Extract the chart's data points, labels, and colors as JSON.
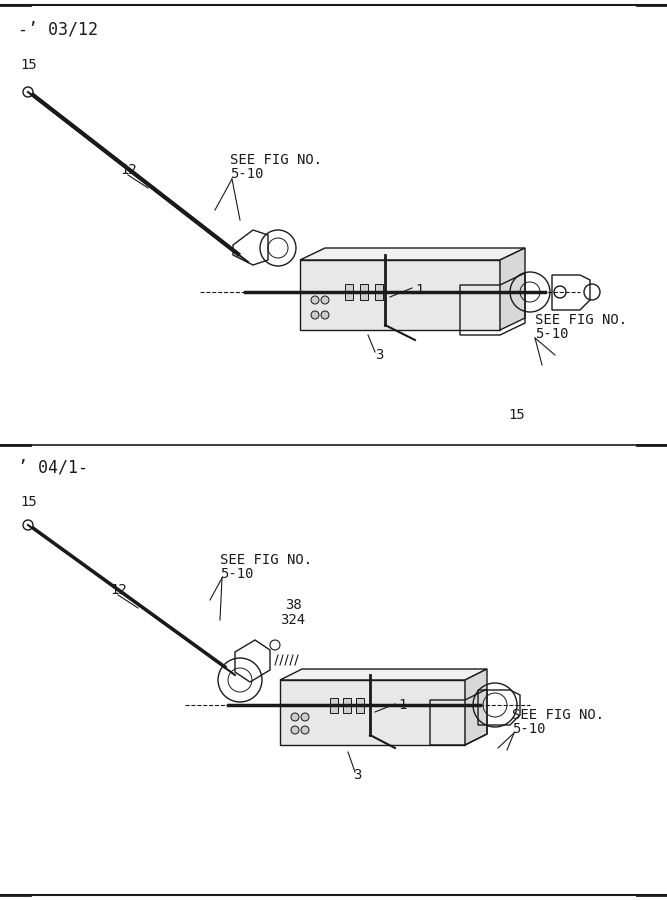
{
  "bg_color": "#ffffff",
  "line_color": "#1a1a1a",
  "text_color": "#1a1a1a",
  "fig_width": 6.67,
  "fig_height": 9.0,
  "top_label1": "-’ 03/12",
  "top_label2": "’ 04/1-",
  "section1_parts": {
    "label_15_top": "15",
    "label_12": "12",
    "label_see_fig_1": "SEE FIG NO.\n5-10",
    "label_1": "1",
    "label_3": "3",
    "label_15_bot": "15",
    "label_see_fig_2": "SEE FIG NO.\n5-10"
  },
  "section2_parts": {
    "label_15_top": "15",
    "label_12": "12",
    "label_see_fig": "SEE FIG NO.\n5-10",
    "label_38": "38",
    "label_324": "324",
    "label_1": "1",
    "label_3": "3",
    "label_see_fig_2": "SEE FIG NO.\n5-10"
  }
}
